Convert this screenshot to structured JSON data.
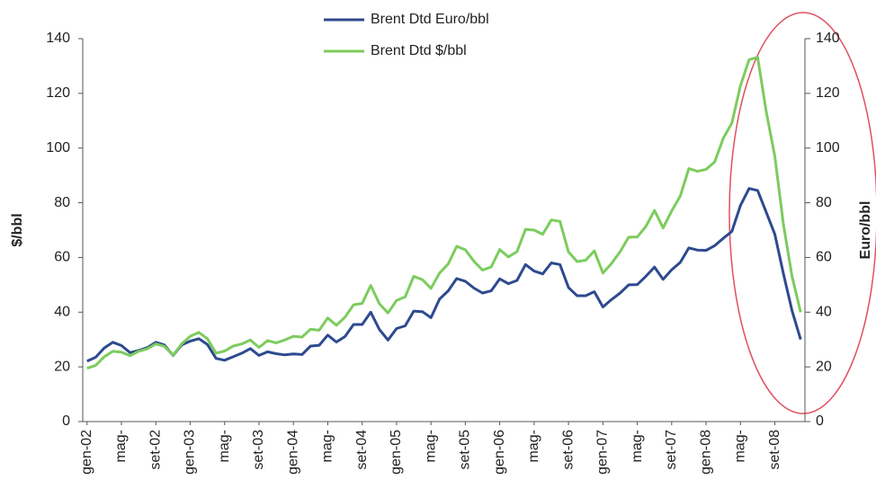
{
  "chart_data": {
    "type": "line",
    "categories": [
      "gen-02",
      null,
      null,
      null,
      "mag-",
      null,
      null,
      null,
      "set-02",
      null,
      null,
      null,
      "gen-03",
      null,
      null,
      null,
      "mag-",
      null,
      null,
      null,
      "set-03",
      null,
      null,
      null,
      "gen-04",
      null,
      null,
      null,
      "mag-",
      null,
      null,
      null,
      "set-04",
      null,
      null,
      null,
      "gen-05",
      null,
      null,
      null,
      "mag-",
      null,
      null,
      null,
      "set-05",
      null,
      null,
      null,
      "gen-06",
      null,
      null,
      null,
      "mag-",
      null,
      null,
      null,
      "set-06",
      null,
      null,
      null,
      "gen-07",
      null,
      null,
      null,
      "mag-",
      null,
      null,
      null,
      "set-07",
      null,
      null,
      null,
      "gen-08",
      null,
      null,
      null,
      "mag-",
      null,
      null,
      null,
      "set-08",
      null,
      null,
      null
    ],
    "series": [
      {
        "name": "Brent Dtd Euro/bbl",
        "color": "#2e4a8f",
        "axis": "y2",
        "values": [
          22.1,
          23.5,
          26.9,
          29.0,
          27.8,
          25.2,
          26.0,
          27.0,
          29.0,
          28.0,
          24.2,
          28.0,
          29.4,
          30.3,
          28.2,
          23.1,
          22.4,
          23.7,
          25.0,
          26.7,
          24.2,
          25.5,
          24.8,
          24.4,
          24.7,
          24.5,
          27.6,
          27.9,
          31.6,
          29.1,
          31.1,
          35.5,
          35.5,
          40.0,
          33.7,
          29.8,
          34.0,
          35.0,
          40.4,
          40.2,
          38.0,
          44.8,
          47.8,
          52.3,
          51.3,
          48.8,
          47.0,
          47.8,
          52.2,
          50.4,
          51.6,
          57.4,
          55.0,
          54.0,
          58.0,
          57.4,
          49.0,
          46.0,
          46.0,
          47.5,
          41.9,
          44.6,
          47.0,
          50.0,
          50.1,
          53.1,
          56.5,
          52.0,
          55.5,
          58.2,
          63.5,
          62.7,
          62.6,
          64.3,
          67.0,
          69.5,
          79.0,
          85.2,
          84.5,
          76.5,
          68.5,
          54.0,
          40.5,
          30.0
        ]
      },
      {
        "name": "Brent Dtd $/bbl",
        "color": "#7ccc5e",
        "values": [
          19.5,
          20.5,
          23.7,
          25.7,
          25.4,
          24.1,
          25.7,
          26.6,
          28.4,
          27.5,
          24.3,
          28.4,
          31.2,
          32.6,
          30.3,
          25.0,
          25.8,
          27.6,
          28.4,
          29.8,
          27.1,
          29.6,
          28.8,
          29.8,
          31.2,
          30.9,
          33.8,
          33.4,
          37.9,
          35.2,
          38.2,
          42.7,
          43.2,
          49.8,
          43.1,
          39.7,
          44.3,
          45.6,
          53.1,
          51.9,
          48.7,
          54.3,
          57.6,
          64.1,
          62.8,
          58.6,
          55.4,
          56.5,
          62.9,
          60.2,
          62.1,
          70.3,
          70.0,
          68.5,
          73.7,
          73.2,
          62.0,
          58.5,
          59.0,
          62.4,
          54.3,
          57.8,
          62.1,
          67.4,
          67.5,
          71.3,
          77.2,
          70.8,
          77.0,
          82.5,
          92.5,
          91.5,
          92.2,
          94.9,
          103.6,
          109.1,
          122.8,
          132.3,
          133.2,
          113.2,
          97.0,
          72.0,
          53.0,
          40.0
        ]
      }
    ],
    "ylabel": "$/bbl",
    "y2label": "Euro/bbl",
    "ylim": [
      0,
      140
    ],
    "yticks": [
      0,
      20,
      40,
      60,
      80,
      100,
      120,
      140
    ],
    "y2lim": [
      0,
      140
    ],
    "y2ticks": [
      0,
      20,
      40,
      60,
      80,
      100,
      120,
      140
    ],
    "grid": false,
    "legend": "top"
  }
}
